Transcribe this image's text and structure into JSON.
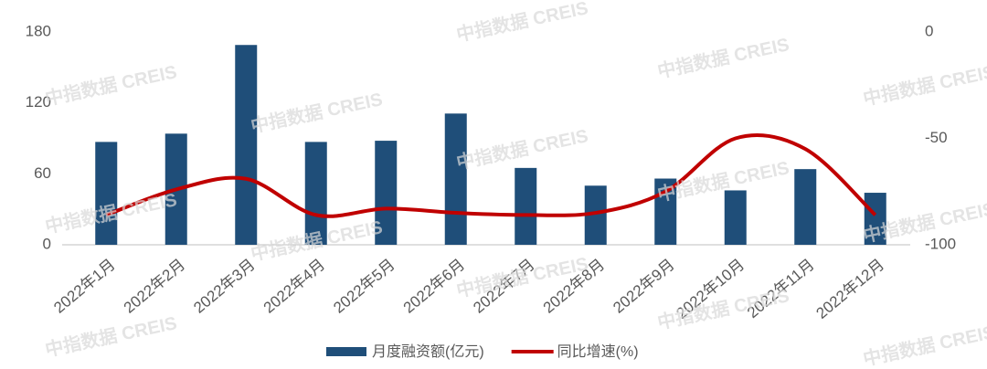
{
  "watermark": "中指数据 CREIS",
  "chart_data": {
    "type": "bar-line",
    "categories": [
      "2022年1月",
      "2022年2月",
      "2022年3月",
      "2022年4月",
      "2022年5月",
      "2022年6月",
      "2022年7月",
      "2022年8月",
      "2022年9月",
      "2022年10月",
      "2022年11月",
      "2022年12月"
    ],
    "series": [
      {
        "name": "月度融资额(亿元)",
        "type": "bar",
        "color": "#1f4e79",
        "values": [
          87,
          94,
          169,
          87,
          88,
          111,
          65,
          50,
          56,
          46,
          64,
          44
        ]
      },
      {
        "name": "同比增速(%)",
        "type": "line",
        "axis": "y2",
        "color": "#c00000",
        "values": [
          -86,
          -74,
          -69,
          -86,
          -83,
          -85,
          -86,
          -85,
          -75,
          -50,
          -55,
          -86
        ]
      }
    ],
    "ylim": [
      0,
      180
    ],
    "yticks": [
      0,
      60,
      120,
      180
    ],
    "y2lim": [
      -100,
      0
    ],
    "y2ticks": [
      -100,
      -50,
      0
    ],
    "grid": false,
    "legend": "bottom"
  }
}
